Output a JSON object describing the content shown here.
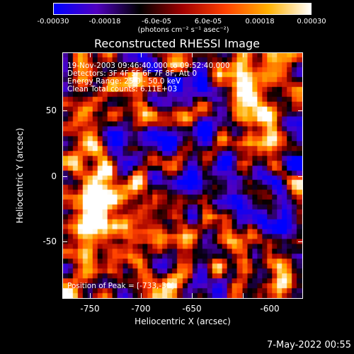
{
  "colorbar": {
    "ticks": [
      "-0.00030",
      "-0.00018",
      "-6.0e-05",
      "6.0e-05",
      "0.00018",
      "0.00030"
    ],
    "units": "(photons cm⁻² s⁻¹ asec⁻²)",
    "colors": [
      "#0000ff",
      "#5000c0",
      "#000000",
      "#a00000",
      "#ff4000",
      "#ffb000",
      "#ffffff"
    ]
  },
  "title": "Reconstructed RHESSI Image",
  "info": {
    "line1": "19-Nov-2003 09:46:40.000 to 09:52:40.000",
    "line2": "Detectors: 3F 4F 5F 6F 7F 8F, Att 0",
    "line3": "Energy Range: 25.0 - 50.0 keV",
    "line4": "Clean    Total counts: 6.11E+03",
    "peak": "Position of Peak = [-733,-30]"
  },
  "axes": {
    "xlabel": "Heliocentric X (arcsec)",
    "ylabel": "Heliocentric Y (arcsec)",
    "xticks": [
      "-750",
      "-700",
      "-650",
      "-600"
    ],
    "yticks": [
      "50",
      "0",
      "-50"
    ]
  },
  "footer": "7-May-2022 00:55"
}
